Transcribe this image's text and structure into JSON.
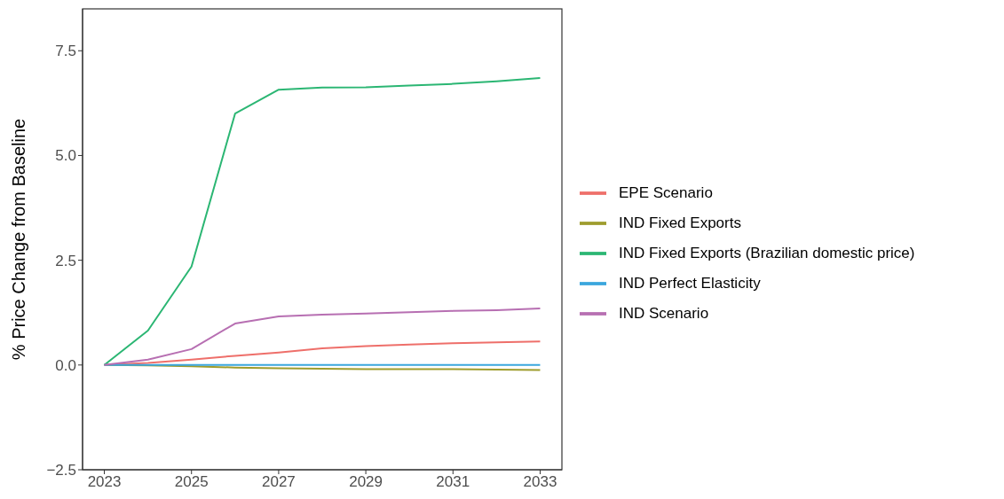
{
  "chart_data": {
    "type": "line",
    "ylabel": "% Price Change from Baseline",
    "x": [
      2023,
      2024,
      2025,
      2026,
      2027,
      2028,
      2029,
      2030,
      2031,
      2032,
      2033
    ],
    "xlim": [
      2022.5,
      2033.5
    ],
    "xticks": [
      2023,
      2025,
      2027,
      2029,
      2031,
      2033
    ],
    "ylim": [
      -2.5,
      8.5
    ],
    "yticks": [
      {
        "value": -2.5,
        "label": "−2.5"
      },
      {
        "value": 0,
        "label": "0.0"
      },
      {
        "value": 2.5,
        "label": "2.5"
      },
      {
        "value": 5,
        "label": "5.0"
      },
      {
        "value": 7.5,
        "label": "7.5"
      }
    ],
    "grid": false,
    "legend": "right",
    "marker": "none",
    "line_style": "solid",
    "series": [
      {
        "name": "EPE Scenario",
        "color": "#ee6f6a",
        "values": [
          0,
          0.05,
          0.13,
          0.22,
          0.3,
          0.4,
          0.45,
          0.49,
          0.52,
          0.54,
          0.56
        ]
      },
      {
        "name": "IND Fixed Exports",
        "color": "#9e9c2d",
        "values": [
          0,
          -0.01,
          -0.03,
          -0.06,
          -0.08,
          -0.09,
          -0.1,
          -0.1,
          -0.1,
          -0.11,
          -0.12
        ]
      },
      {
        "name": "IND Fixed Exports (Brazilian domestic price)",
        "color": "#2bb673",
        "values": [
          0,
          0.82,
          2.35,
          6.0,
          6.57,
          6.62,
          6.63,
          6.67,
          6.71,
          6.77,
          6.85
        ]
      },
      {
        "name": "IND Perfect Elasticity",
        "color": "#3aa6dd",
        "values": [
          0,
          0,
          0,
          0,
          0,
          0,
          0,
          0,
          0,
          0,
          0
        ]
      },
      {
        "name": "IND Scenario",
        "color": "#b76fb2",
        "values": [
          0,
          0.13,
          0.38,
          0.99,
          1.16,
          1.2,
          1.23,
          1.26,
          1.29,
          1.31,
          1.35
        ]
      }
    ]
  }
}
